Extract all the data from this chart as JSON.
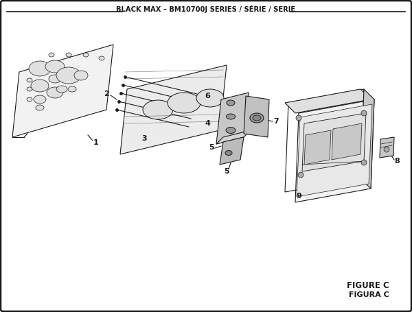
{
  "title": "BLACK MAX – BM10700J SERIES / SÉRIE / SERIE",
  "figure_label": "FIGURE C",
  "figura_label": "FIGURA C",
  "bg_color": "#ffffff",
  "border_color": "#1a1a1a",
  "line_color": "#1a1a1a",
  "fill_light": "#f2f2f2",
  "fill_mid": "#e0e0e0",
  "fill_dark": "#c8c8c8",
  "figsize": [
    6.0,
    4.55
  ],
  "dpi": 100
}
